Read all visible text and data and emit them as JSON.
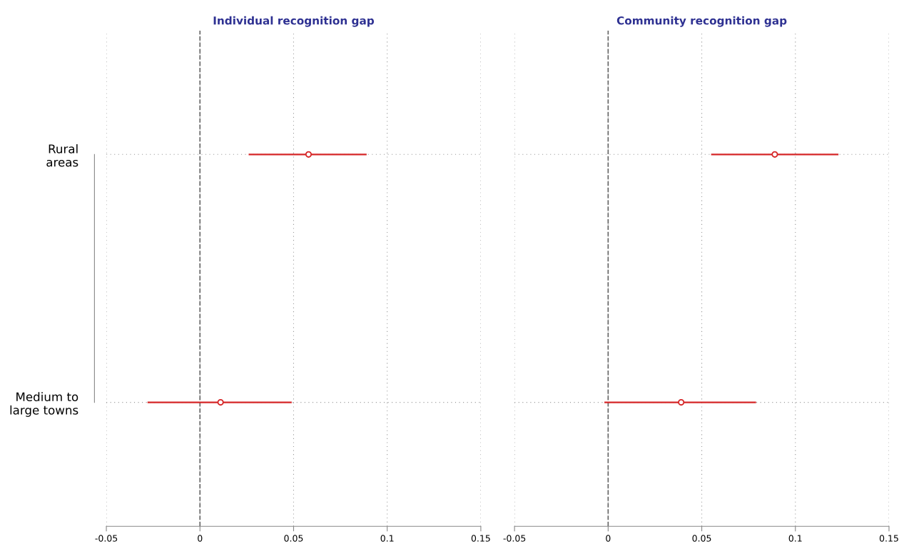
{
  "chart_data": [
    {
      "type": "scatter",
      "orientation": "horizontal",
      "title": "Individual recognition gap",
      "categories": [
        "Rural\nareas",
        "Medium to\nlarge towns"
      ],
      "series": [
        {
          "color": "#d62728",
          "values": [
            0.058,
            0.011
          ],
          "errors": [
            [
              0.026,
              0.089
            ],
            [
              -0.028,
              0.049
            ]
          ]
        }
      ],
      "xlim": [
        -0.05,
        0.15
      ],
      "xticks": [
        -0.05,
        0,
        0.05,
        0.1,
        0.15
      ],
      "ref_lines": [
        {
          "axis": "x",
          "value": 0,
          "color": "#666666",
          "line_style": "dashed"
        }
      ],
      "grid": true,
      "marker": "circle",
      "legend": false
    },
    {
      "type": "scatter",
      "orientation": "horizontal",
      "title": "Community recognition gap",
      "series": [
        {
          "color": "#d62728",
          "values": [
            0.089,
            0.039
          ],
          "errors": [
            [
              0.055,
              0.123
            ],
            [
              -0.002,
              0.079
            ]
          ]
        }
      ],
      "xlim": [
        -0.05,
        0.15
      ],
      "xticks": [
        -0.05,
        0,
        0.05,
        0.1,
        0.15
      ],
      "ref_lines": [
        {
          "axis": "x",
          "value": 0,
          "color": "#666666",
          "line_style": "dashed"
        }
      ],
      "grid": true,
      "marker": "circle",
      "legend": false,
      "tick_labels": "x"
    }
  ]
}
